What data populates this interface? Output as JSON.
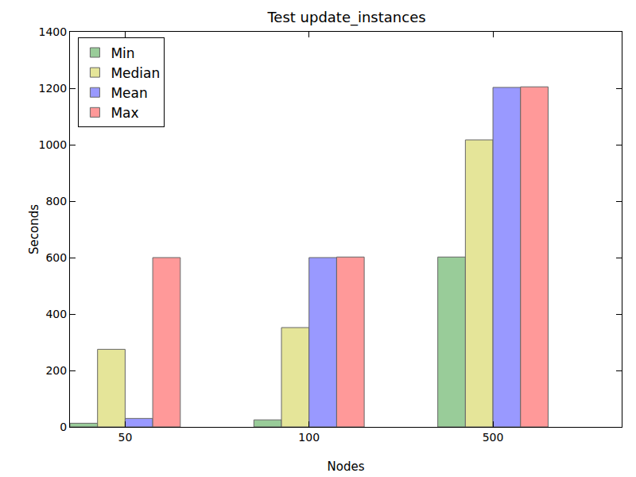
{
  "chart_data": {
    "type": "bar",
    "title": "Test update_instances",
    "x_label": "Nodes",
    "y_label": "Seconds",
    "categories": [
      "50",
      "100",
      "500"
    ],
    "series": [
      {
        "name": "Min",
        "color": "#99cc99",
        "values": [
          13,
          25,
          602
        ]
      },
      {
        "name": "Median",
        "color": "#e5e599",
        "values": [
          275,
          352,
          1017
        ]
      },
      {
        "name": "Mean",
        "color": "#9999ff",
        "values": [
          30,
          600,
          1203
        ]
      },
      {
        "name": "Max",
        "color": "#ff9999",
        "values": [
          600,
          602,
          1205
        ]
      }
    ],
    "ylim": [
      0,
      1400
    ],
    "yticks": [
      0,
      200,
      400,
      600,
      800,
      1000,
      1200,
      1400
    ],
    "grid": false,
    "legend": "upper left"
  }
}
